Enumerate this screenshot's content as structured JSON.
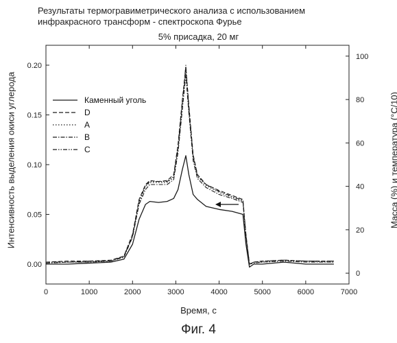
{
  "header": {
    "title_line1": "Результаты термогравиметрического анализа с использованием",
    "title_line2": "инфракрасного трансформ - спектроскопа Фурье",
    "subtitle": "5% присадка, 20 мг"
  },
  "caption": "Фиг. 4",
  "chart_data": {
    "type": "line",
    "title": "Результаты термогравиметрического анализа с использованием инфракрасного трансформ - спектроскопа Фурье",
    "subtitle": "5% присадка, 20 мг",
    "xlabel": "Время, с",
    "ylabel": "Интенсивность выделения окиси углерода",
    "ylabel_right": "Масса (%) и температура (°C/10)",
    "xlim": [
      0,
      7000
    ],
    "ylim": [
      -0.02,
      0.22
    ],
    "ylim_right": [
      -5,
      105
    ],
    "x_ticks": [
      "0",
      "1000",
      "2000",
      "3000",
      "4000",
      "5000",
      "6000",
      "7000"
    ],
    "y_ticks": [
      "0.00",
      "0.05",
      "0.10",
      "0.15",
      "0.20"
    ],
    "y_ticks_right": [
      "0",
      "20",
      "40",
      "60",
      "80",
      "100"
    ],
    "grid": false,
    "legend_position": "top-left",
    "annotations": [
      {
        "type": "arrow",
        "direction": "left",
        "at": [
          4450,
          0.06
        ]
      }
    ],
    "series": [
      {
        "name": "Каменный уголь",
        "style": "solid",
        "x": [
          0,
          500,
          1000,
          1500,
          1800,
          2000,
          2150,
          2300,
          2400,
          2600,
          2800,
          2950,
          3050,
          3150,
          3230,
          3300,
          3400,
          3500,
          3700,
          4000,
          4300,
          4550,
          4620,
          4700,
          4800,
          5000,
          5500,
          6000,
          6650
        ],
        "y": [
          0.0,
          0.0,
          0.001,
          0.002,
          0.005,
          0.02,
          0.045,
          0.06,
          0.063,
          0.062,
          0.063,
          0.066,
          0.075,
          0.095,
          0.109,
          0.09,
          0.07,
          0.065,
          0.058,
          0.055,
          0.053,
          0.05,
          0.02,
          -0.003,
          0.0,
          0.0,
          0.002,
          0.0,
          0.0
        ]
      },
      {
        "name": "D",
        "style": "dashed",
        "x": [
          0,
          500,
          1000,
          1500,
          1800,
          2000,
          2150,
          2300,
          2400,
          2600,
          2800,
          2950,
          3050,
          3150,
          3230,
          3300,
          3400,
          3500,
          3700,
          4000,
          4300,
          4550,
          4620,
          4700,
          4800,
          5000,
          5500,
          6000,
          6650
        ],
        "y": [
          0.002,
          0.003,
          0.003,
          0.004,
          0.008,
          0.03,
          0.065,
          0.08,
          0.084,
          0.083,
          0.084,
          0.09,
          0.12,
          0.165,
          0.198,
          0.16,
          0.11,
          0.09,
          0.08,
          0.074,
          0.069,
          0.065,
          0.03,
          0.0,
          0.002,
          0.003,
          0.004,
          0.003,
          0.003
        ]
      },
      {
        "name": "A",
        "style": "dotted",
        "x": [
          0,
          500,
          1000,
          1500,
          1800,
          2000,
          2150,
          2300,
          2400,
          2600,
          2800,
          2950,
          3050,
          3150,
          3230,
          3300,
          3400,
          3500,
          3700,
          4000,
          4300,
          4550,
          4620,
          4700,
          4800,
          5000,
          5500,
          6000,
          6650
        ],
        "y": [
          0.001,
          0.002,
          0.002,
          0.003,
          0.007,
          0.028,
          0.062,
          0.078,
          0.082,
          0.082,
          0.082,
          0.087,
          0.115,
          0.16,
          0.195,
          0.155,
          0.107,
          0.088,
          0.079,
          0.072,
          0.067,
          0.063,
          0.028,
          0.0,
          0.002,
          0.002,
          0.003,
          0.003,
          0.002
        ]
      },
      {
        "name": "B",
        "style": "dashdot",
        "x": [
          0,
          500,
          1000,
          1500,
          1800,
          2000,
          2150,
          2300,
          2400,
          2600,
          2800,
          2950,
          3050,
          3150,
          3230,
          3300,
          3400,
          3500,
          3700,
          4000,
          4300,
          4550,
          4620,
          4700,
          4800,
          5000,
          5500,
          6000,
          6650
        ],
        "y": [
          0.001,
          0.002,
          0.002,
          0.003,
          0.007,
          0.027,
          0.06,
          0.075,
          0.08,
          0.08,
          0.08,
          0.085,
          0.112,
          0.155,
          0.19,
          0.152,
          0.104,
          0.086,
          0.077,
          0.07,
          0.066,
          0.062,
          0.027,
          0.0,
          0.001,
          0.002,
          0.003,
          0.002,
          0.002
        ]
      },
      {
        "name": "C",
        "style": "dashdotdot",
        "x": [
          0,
          500,
          1000,
          1500,
          1800,
          2000,
          2150,
          2300,
          2400,
          2600,
          2800,
          2950,
          3050,
          3150,
          3230,
          3300,
          3400,
          3500,
          3700,
          4000,
          4300,
          4550,
          4620,
          4700,
          4800,
          5000,
          5500,
          6000,
          6650
        ],
        "y": [
          0.002,
          0.002,
          0.003,
          0.003,
          0.008,
          0.029,
          0.063,
          0.079,
          0.083,
          0.083,
          0.083,
          0.088,
          0.118,
          0.162,
          0.2,
          0.158,
          0.108,
          0.089,
          0.08,
          0.073,
          0.068,
          0.064,
          0.029,
          0.0,
          0.002,
          0.003,
          0.004,
          0.003,
          0.003
        ]
      }
    ]
  }
}
